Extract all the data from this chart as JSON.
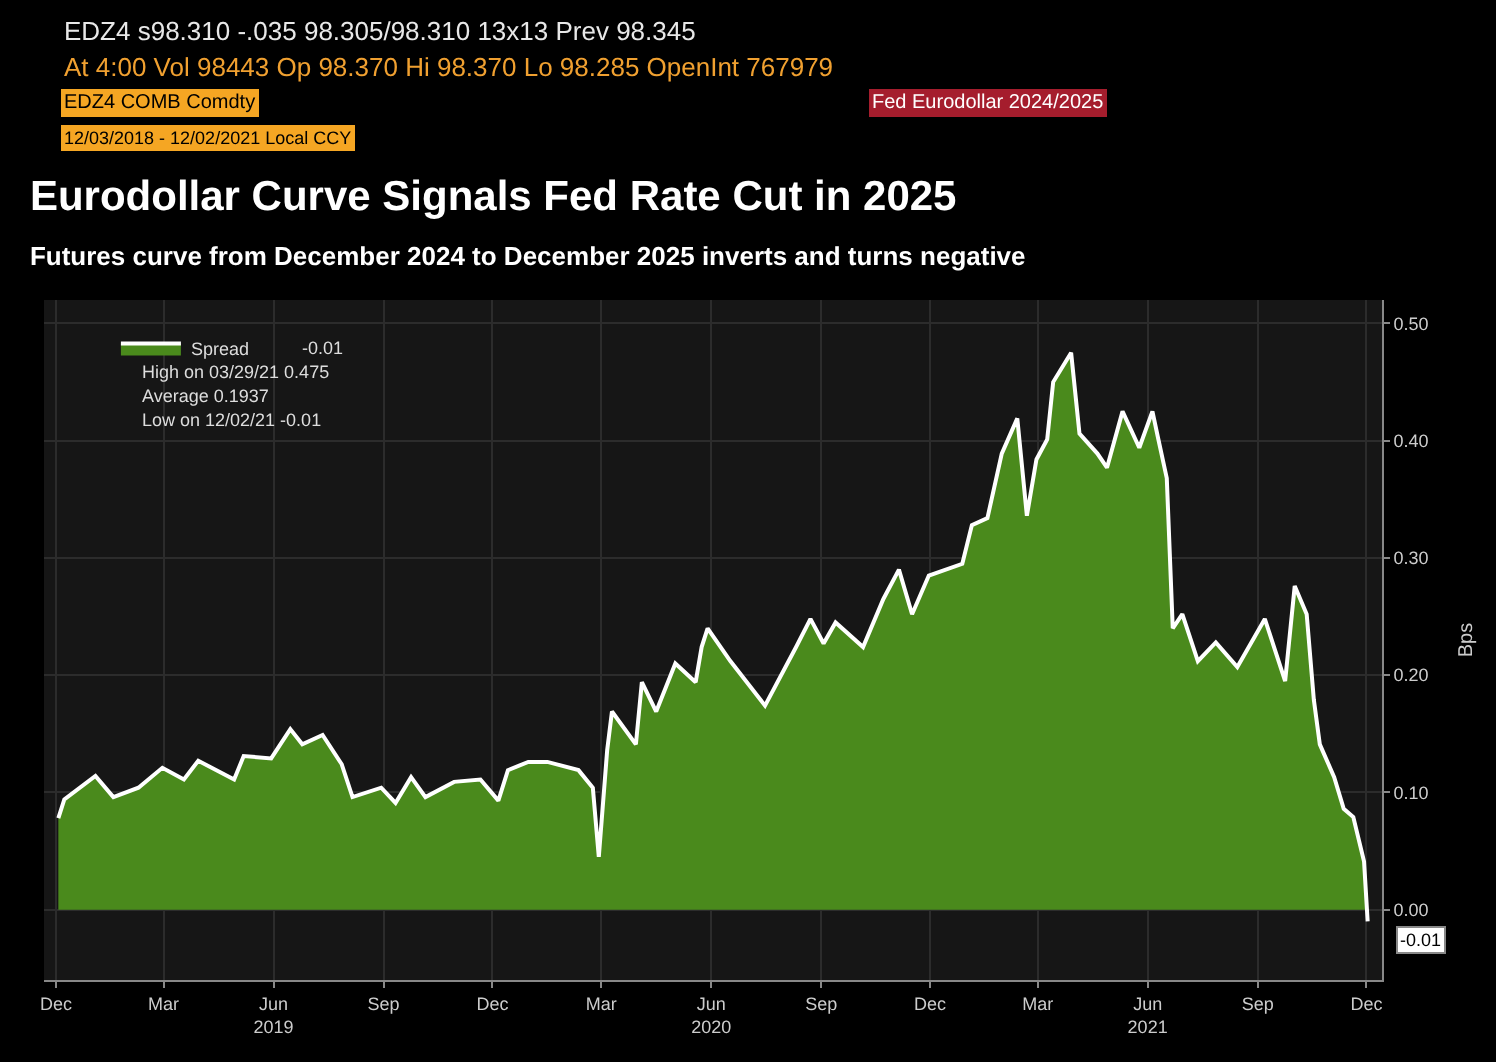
{
  "chart_data": {
    "type": "area",
    "title": "Eurodollar Curve Signals Fed Rate Cut in 2025",
    "subtitle": "Futures curve from December 2024 to December 2025 inverts and turns negative",
    "ylabel": "Bps",
    "x": [
      "2018-12-03",
      "2018-12-08",
      "2019-01-03",
      "2019-01-18",
      "2019-02-08",
      "2019-02-28",
      "2019-03-18",
      "2019-03-30",
      "2019-04-29",
      "2019-05-07",
      "2019-05-30",
      "2019-06-15",
      "2019-06-25",
      "2019-07-12",
      "2019-07-28",
      "2019-08-06",
      "2019-08-30",
      "2019-09-11",
      "2019-09-24",
      "2019-10-06",
      "2019-10-30",
      "2019-11-21",
      "2019-12-06",
      "2019-12-14",
      "2019-12-31",
      "2020-01-16",
      "2020-02-11",
      "2020-02-23",
      "2020-02-28",
      "2020-03-06",
      "2020-03-10",
      "2020-03-30",
      "2020-04-04",
      "2020-04-16",
      "2020-05-02",
      "2020-05-19",
      "2020-05-24",
      "2020-05-29",
      "2020-06-17",
      "2020-07-16",
      "2020-08-11",
      "2020-08-23",
      "2020-09-03",
      "2020-09-13",
      "2020-10-06",
      "2020-10-23",
      "2020-11-05",
      "2020-11-16",
      "2020-11-30",
      "2020-12-28",
      "2021-01-05",
      "2021-01-18",
      "2021-01-30",
      "2021-02-12",
      "2021-02-20",
      "2021-02-28",
      "2021-03-09",
      "2021-03-14",
      "2021-03-29",
      "2021-04-05",
      "2021-04-20",
      "2021-04-28",
      "2021-05-11",
      "2021-05-25",
      "2021-06-05",
      "2021-06-10",
      "2021-06-17",
      "2021-06-22",
      "2021-06-30",
      "2021-07-13",
      "2021-07-28",
      "2021-08-15",
      "2021-09-07",
      "2021-09-24",
      "2021-10-02",
      "2021-10-12",
      "2021-10-18",
      "2021-10-23",
      "2021-11-04",
      "2021-11-12",
      "2021-11-20",
      "2021-11-29",
      "2021-12-02"
    ],
    "series": [
      {
        "name": "Spread",
        "color": "#4a8a1c",
        "values": [
          0.078,
          0.094,
          0.114,
          0.096,
          0.104,
          0.121,
          0.111,
          0.127,
          0.111,
          0.131,
          0.129,
          0.154,
          0.141,
          0.149,
          0.124,
          0.096,
          0.104,
          0.091,
          0.113,
          0.096,
          0.109,
          0.111,
          0.093,
          0.119,
          0.126,
          0.126,
          0.119,
          0.104,
          0.045,
          0.136,
          0.169,
          0.141,
          0.194,
          0.169,
          0.21,
          0.194,
          0.224,
          0.24,
          0.212,
          0.174,
          0.224,
          0.248,
          0.227,
          0.245,
          0.224,
          0.265,
          0.29,
          0.252,
          0.285,
          0.295,
          0.328,
          0.334,
          0.389,
          0.419,
          0.336,
          0.384,
          0.401,
          0.45,
          0.475,
          0.406,
          0.389,
          0.377,
          0.425,
          0.394,
          0.425,
          0.401,
          0.368,
          0.24,
          0.252,
          0.212,
          0.228,
          0.207,
          0.248,
          0.195,
          0.276,
          0.252,
          0.179,
          0.141,
          0.113,
          0.086,
          0.079,
          0.041,
          -0.01
        ]
      }
    ],
    "xlim": [
      "2018-11-21",
      "2021-12-14"
    ],
    "xticks": [
      {
        "value": "2018-12-01",
        "label": "Dec"
      },
      {
        "value": "2019-03-01",
        "label": "Mar"
      },
      {
        "value": "2019-06-01",
        "label": "Jun\n2019"
      },
      {
        "value": "2019-09-01",
        "label": "Sep"
      },
      {
        "value": "2019-12-01",
        "label": "Dec"
      },
      {
        "value": "2020-03-01",
        "label": "Mar"
      },
      {
        "value": "2020-06-01",
        "label": "Jun\n2020"
      },
      {
        "value": "2020-09-01",
        "label": "Sep"
      },
      {
        "value": "2020-12-01",
        "label": "Dec"
      },
      {
        "value": "2021-03-01",
        "label": "Mar"
      },
      {
        "value": "2021-06-01",
        "label": "Jun\n2021"
      },
      {
        "value": "2021-09-01",
        "label": "Sep"
      },
      {
        "value": "2021-12-01",
        "label": "Dec"
      }
    ],
    "ylim": [
      -0.06,
      0.52
    ],
    "yticks": [
      {
        "value": 0,
        "label": "0.00"
      },
      {
        "value": 0.1,
        "label": "0.10"
      },
      {
        "value": 0.2,
        "label": "0.20"
      },
      {
        "value": 0.3,
        "label": "0.30"
      },
      {
        "value": 0.4,
        "label": "0.40"
      },
      {
        "value": 0.5,
        "label": "0.50"
      }
    ],
    "grid": true,
    "legend": "top left",
    "annotations": [
      "EDZ4 s98.310 -.035 98.305/98.310 13x13 Prev 98.345",
      "At 4:00 Vol 98443 Op 98.370 Hi 98.370 Lo 98.285 OpenInt 767979",
      "EDZ4 COMB Comdty",
      "Fed Eurodollar 2024/2025",
      "12/03/2018 - 12/02/2021 Local CCY",
      "-0.01",
      "High on 03/29/21 0.475",
      "Average 0.1937",
      "Low on 12/02/21 -0.01",
      {
        "text": "-0.01",
        "x": "2021-12-02",
        "y": -0.01
      }
    ]
  }
}
